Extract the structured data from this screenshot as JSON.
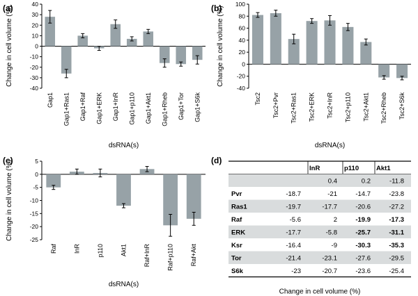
{
  "panels": [
    "(a)",
    "(b)",
    "(c)",
    "(d)"
  ],
  "chart_data": [
    {
      "type": "bar",
      "panel": "(a)",
      "title": "",
      "xlabel": "dsRNA(s)",
      "ylabel": "Change in cell volume (%)",
      "ylim": [
        -40,
        40
      ],
      "yticks": [
        -40,
        -30,
        -20,
        -10,
        0,
        10,
        20,
        30,
        40
      ],
      "categories": [
        "Gap1",
        "Gap1+Ras1",
        "Gap1+Raf",
        "Gap1+ERK",
        "Gap1+InR",
        "Gap1+p110",
        "Gap1+Akt1",
        "Gap1+Rheb",
        "Gap1+Tor",
        "Gap1+S6k"
      ],
      "values": [
        28,
        -26,
        10,
        -2,
        21,
        7,
        14,
        -16,
        -17,
        -13
      ],
      "errors": [
        6,
        4,
        2,
        2,
        4,
        2,
        2,
        4,
        2,
        4
      ],
      "bar_color": "#97a2a7"
    },
    {
      "type": "bar",
      "panel": "(b)",
      "title": "",
      "xlabel": "dsRNA(s)",
      "ylabel": "Change in cell volume (%)",
      "ylim": [
        -40,
        100
      ],
      "yticks": [
        -40,
        -20,
        0,
        20,
        40,
        60,
        80,
        100
      ],
      "categories": [
        "Tsc2",
        "Tsc2+Pvr",
        "Tsc2+Ras1",
        "Tsc2+ERK",
        "Tsc2+InR",
        "Tsc2+p110",
        "Tsc2+Akt1",
        "Tsc2+Rheb",
        "Tsc2+S6k"
      ],
      "values": [
        82,
        85,
        42,
        72,
        73,
        62,
        37,
        -22,
        -23
      ],
      "errors": [
        4,
        5,
        8,
        4,
        8,
        6,
        5,
        3,
        3
      ],
      "bar_color": "#97a2a7"
    },
    {
      "type": "bar",
      "panel": "(c)",
      "title": "",
      "xlabel": "dsRNA(s)",
      "ylabel": "Change in cell volume (%)",
      "ylim": [
        -25,
        5
      ],
      "yticks": [
        -25,
        -20,
        -15,
        -10,
        -5,
        0,
        5
      ],
      "categories": [
        "Raf",
        "InR",
        "p110",
        "Akt1",
        "Raf+InR",
        "Raf+p110",
        "Raf+Akt"
      ],
      "values": [
        -5,
        1,
        0.5,
        -12,
        2,
        -19.5,
        -17
      ],
      "errors": [
        0.8,
        1,
        1.5,
        0.8,
        1,
        4.2,
        2.5
      ],
      "bar_color": "#97a2a7"
    },
    {
      "type": "table",
      "panel": "(d)",
      "caption": "Change in cell volume (%)",
      "columns": [
        "",
        "",
        "InR",
        "p110",
        "Akt1"
      ],
      "rows": [
        {
          "label": "",
          "cells": [
            "",
            "0.4",
            "0.2",
            "-11.8"
          ],
          "bold": [
            false,
            false,
            false,
            false
          ]
        },
        {
          "label": "Pvr",
          "cells": [
            "-18.7",
            "-21",
            "-14.7",
            "-23.8"
          ],
          "bold": [
            false,
            false,
            false,
            false
          ]
        },
        {
          "label": "Ras1",
          "cells": [
            "-19.7",
            "-17.7",
            "-20.6",
            "-27.2"
          ],
          "bold": [
            false,
            false,
            false,
            false
          ]
        },
        {
          "label": "Raf",
          "cells": [
            "-5.6",
            "2",
            "-19.9",
            "-17.3"
          ],
          "bold": [
            false,
            false,
            true,
            true
          ]
        },
        {
          "label": "ERK",
          "cells": [
            "-17.7",
            "-5.8",
            "-25.7",
            "-31.1"
          ],
          "bold": [
            false,
            false,
            true,
            true
          ]
        },
        {
          "label": "Ksr",
          "cells": [
            "-16.4",
            "-9",
            "-30.3",
            "-35.3"
          ],
          "bold": [
            false,
            false,
            true,
            true
          ]
        },
        {
          "label": "Tor",
          "cells": [
            "-21.4",
            "-23.1",
            "-27.6",
            "-29.5"
          ],
          "bold": [
            false,
            false,
            false,
            false
          ]
        },
        {
          "label": "S6k",
          "cells": [
            "-23",
            "-20.7",
            "-23.6",
            "-25.4"
          ],
          "bold": [
            false,
            false,
            false,
            false
          ]
        }
      ],
      "stripe_color": "#d9dcdd"
    }
  ]
}
